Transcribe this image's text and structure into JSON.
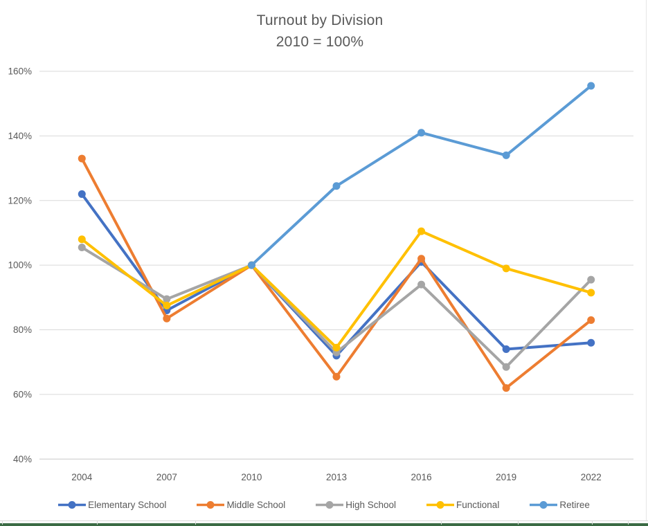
{
  "chart_data": {
    "type": "line",
    "title": "Turnout by Division",
    "subtitle": "2010 = 100%",
    "categories": [
      "2004",
      "2007",
      "2010",
      "2013",
      "2016",
      "2019",
      "2022"
    ],
    "series": [
      {
        "name": "Elementary School",
        "color": "#4472C4",
        "values": [
          122,
          86,
          100,
          72,
          101,
          74,
          76
        ]
      },
      {
        "name": "Middle School",
        "color": "#ED7D31",
        "values": [
          133,
          83.5,
          100,
          65.5,
          102,
          62,
          83
        ]
      },
      {
        "name": "High School",
        "color": "#A5A5A5",
        "values": [
          105.5,
          89.5,
          100,
          73,
          94,
          68.5,
          95.5
        ]
      },
      {
        "name": "Functional",
        "color": "#FFC000",
        "values": [
          108,
          87.5,
          100,
          74.5,
          110.5,
          99,
          91.5
        ]
      },
      {
        "name": "Retiree",
        "color": "#5B9BD5",
        "values": [
          null,
          null,
          100,
          124.5,
          141,
          134,
          155.5
        ]
      }
    ],
    "xlabel": "",
    "ylabel": "",
    "y_axis": {
      "min": 40,
      "max": 160,
      "step": 20,
      "format": "percent",
      "tick_labels": [
        "40%",
        "60%",
        "80%",
        "100%",
        "120%",
        "140%",
        "160%"
      ]
    },
    "grid": "horizontal",
    "legend_position": "bottom",
    "marker": "circle"
  },
  "palette": {
    "grid_line": "#d9d9d9",
    "axis_text": "#595959",
    "title_text": "#595959",
    "sheet_green_bar": "#3a6b44"
  }
}
